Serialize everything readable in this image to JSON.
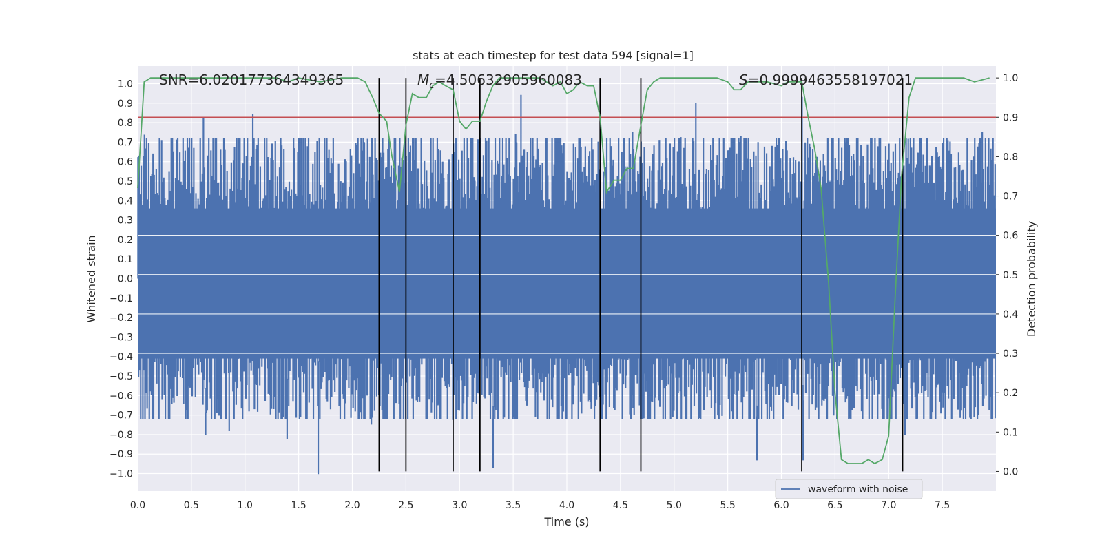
{
  "chart_data": {
    "type": "line",
    "title": "stats at each timestep for test data 594 [signal=1]",
    "xlabel": "Time (s)",
    "ylabel": "Whitened strain",
    "y2label": "Detection probability",
    "xlim": [
      0.0,
      8.0
    ],
    "ylim": [
      -1.09,
      1.09
    ],
    "y2lim": [
      -0.05,
      1.03
    ],
    "x_ticks": [
      "0.0",
      "0.5",
      "1.0",
      "1.5",
      "2.0",
      "2.5",
      "3.0",
      "3.5",
      "4.0",
      "4.5",
      "5.0",
      "5.5",
      "6.0",
      "6.5",
      "7.0",
      "7.5"
    ],
    "y_ticks": [
      "1.0",
      "0.9",
      "0.8",
      "0.7",
      "0.6",
      "0.5",
      "0.4",
      "0.3",
      "0.2",
      "0.1",
      "0.0",
      "-0.1",
      "-0.2",
      "-0.3",
      "-0.4",
      "-0.5",
      "-0.6",
      "-0.7",
      "-0.8",
      "-0.9",
      "-1.0"
    ],
    "y2_ticks": [
      "1.0",
      "0.9",
      "0.8",
      "0.7",
      "0.6",
      "0.5",
      "0.4",
      "0.3",
      "0.2",
      "0.1",
      "0.0"
    ],
    "grid": true,
    "annotations": {
      "snr": "SNR=6.020177364349365",
      "mc_symbol": "M",
      "mc_sub": "c",
      "mc_value": "=4.50632905960083",
      "s_symbol": "S",
      "s_value": "=0.9999463558197021"
    },
    "threshold": {
      "value": 0.9,
      "axis": "right",
      "color": "#c44e52"
    },
    "vertical_lines": [
      2.25,
      2.5,
      2.94,
      3.19,
      4.31,
      4.69,
      6.19,
      7.13
    ],
    "series": [
      {
        "name": "waveform with noise",
        "color": "#4c72b0",
        "axis": "left",
        "kind": "noise",
        "duration": 8.0,
        "sample_count": 1600,
        "typical_peak": 0.5,
        "max_value": 0.94,
        "min_value": -1.0,
        "notable_spikes": [
          {
            "x": 0.61,
            "y": 0.82
          },
          {
            "x": 0.63,
            "y": -0.8
          },
          {
            "x": 1.07,
            "y": 0.84
          },
          {
            "x": 0.85,
            "y": -0.78
          },
          {
            "x": 1.39,
            "y": -0.82
          },
          {
            "x": 1.68,
            "y": -1.0
          },
          {
            "x": 3.31,
            "y": -0.97
          },
          {
            "x": 3.57,
            "y": 0.94
          },
          {
            "x": 4.31,
            "y": 0.88
          },
          {
            "x": 5.2,
            "y": 0.9
          },
          {
            "x": 5.77,
            "y": -0.93
          },
          {
            "x": 6.19,
            "y": 0.93
          },
          {
            "x": 6.2,
            "y": -0.93
          },
          {
            "x": 7.15,
            "y": -0.8
          },
          {
            "x": 7.87,
            "y": 0.75
          }
        ]
      },
      {
        "name": "",
        "color": "#55a868",
        "axis": "right",
        "kind": "line",
        "x": [
          0.0,
          0.06,
          0.12,
          0.25,
          0.5,
          1.0,
          1.3,
          1.4,
          1.5,
          1.7,
          1.9,
          2.05,
          2.12,
          2.19,
          2.25,
          2.32,
          2.37,
          2.44,
          2.5,
          2.56,
          2.62,
          2.69,
          2.75,
          2.81,
          2.87,
          2.94,
          3.0,
          3.06,
          3.12,
          3.19,
          3.25,
          3.31,
          3.37,
          3.44,
          3.5,
          3.56,
          3.62,
          3.69,
          3.75,
          3.81,
          3.87,
          3.94,
          4.0,
          4.06,
          4.12,
          4.19,
          4.25,
          4.31,
          4.37,
          4.44,
          4.5,
          4.56,
          4.62,
          4.69,
          4.75,
          4.81,
          4.87,
          5.0,
          5.2,
          5.4,
          5.5,
          5.56,
          5.62,
          5.69,
          5.75,
          5.87,
          6.0,
          6.06,
          6.12,
          6.19,
          6.25,
          6.31,
          6.37,
          6.44,
          6.5,
          6.56,
          6.62,
          6.69,
          6.75,
          6.81,
          6.87,
          6.94,
          7.0,
          7.06,
          7.12,
          7.19,
          7.25,
          7.31,
          7.5,
          7.7,
          7.8,
          7.94
        ],
        "y": [
          0.72,
          0.99,
          1.0,
          1.0,
          1.0,
          1.0,
          1.0,
          0.99,
          1.0,
          0.99,
          1.0,
          1.0,
          0.99,
          0.95,
          0.91,
          0.89,
          0.8,
          0.71,
          0.88,
          0.96,
          0.95,
          0.95,
          0.98,
          0.99,
          0.98,
          0.97,
          0.89,
          0.87,
          0.89,
          0.89,
          0.94,
          0.98,
          1.0,
          1.0,
          1.0,
          1.0,
          1.0,
          1.0,
          1.0,
          0.99,
          0.98,
          0.99,
          0.96,
          0.97,
          0.99,
          0.98,
          0.98,
          0.9,
          0.71,
          0.74,
          0.74,
          0.77,
          0.77,
          0.88,
          0.97,
          0.99,
          1.0,
          1.0,
          1.0,
          1.0,
          0.99,
          0.97,
          0.97,
          0.99,
          0.99,
          0.99,
          0.98,
          0.99,
          0.99,
          0.99,
          0.9,
          0.82,
          0.72,
          0.48,
          0.2,
          0.03,
          0.02,
          0.02,
          0.02,
          0.03,
          0.02,
          0.03,
          0.09,
          0.44,
          0.75,
          0.95,
          1.0,
          1.0,
          1.0,
          1.0,
          0.99,
          1.0
        ]
      }
    ],
    "legend": {
      "position": "lower-right",
      "entries": [
        "waveform with noise"
      ]
    }
  }
}
